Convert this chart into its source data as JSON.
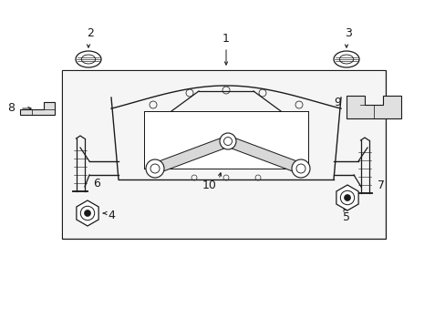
{
  "bg_color": "#ffffff",
  "lc": "#1a1a1a",
  "gray_fill": "#e8e8e8",
  "fig_width": 4.89,
  "fig_height": 3.6,
  "dpi": 100
}
